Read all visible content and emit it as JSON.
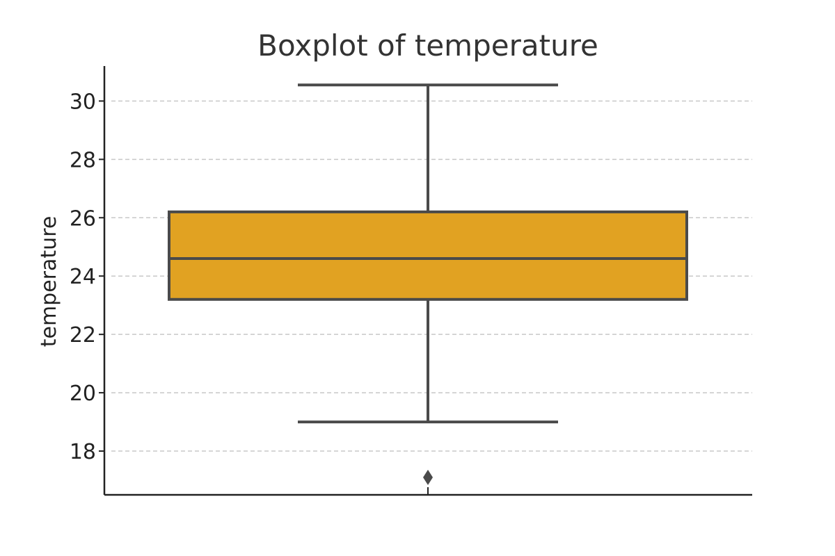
{
  "chart_data": {
    "type": "box",
    "title": "Boxplot of temperature",
    "xlabel": "",
    "ylabel": "temperature",
    "ylim": [
      16.5,
      31.2
    ],
    "yticks": [
      18,
      20,
      22,
      24,
      26,
      28,
      30
    ],
    "grid": "y-dashed",
    "box": {
      "whisker_low": 19.0,
      "q1": 23.2,
      "median": 24.6,
      "q3": 26.2,
      "whisker_high": 30.55,
      "outliers": [
        17.1
      ]
    },
    "colors": {
      "box_fill": "#E1A222",
      "line": "#4A4A4A"
    }
  }
}
